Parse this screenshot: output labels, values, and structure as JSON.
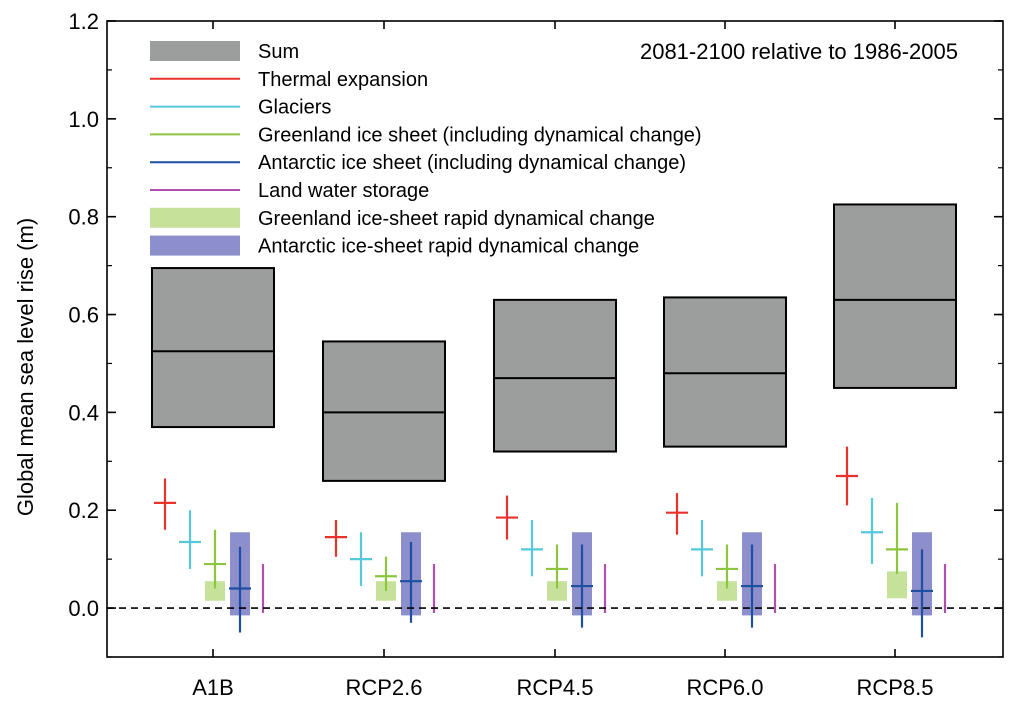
{
  "chart_data": {
    "type": "box-and-whisker",
    "period_label": "2081-2100 relative to 1986-2005",
    "ylabel": "Global mean sea level rise (m)",
    "xlabel": "",
    "ylim": [
      -0.1,
      1.2
    ],
    "yticks": [
      0.0,
      0.2,
      0.4,
      0.6,
      0.8,
      1.0,
      1.2
    ],
    "ytick_labels": [
      "0.0",
      "0.2",
      "0.4",
      "0.6",
      "0.8",
      "1.0",
      "1.2"
    ],
    "zero_line": "dashed",
    "grid": false,
    "legend_position": "top-left",
    "categories": [
      "A1B",
      "RCP2.6",
      "RCP4.5",
      "RCP6.0",
      "RCP8.5"
    ],
    "legend": [
      {
        "key": "sum",
        "label": "Sum",
        "style": "box",
        "color": "#9c9e9e"
      },
      {
        "key": "thermal",
        "label": "Thermal expansion",
        "style": "line",
        "color": "#e8322a"
      },
      {
        "key": "glaciers",
        "label": "Glaciers",
        "style": "line",
        "color": "#55c8dc"
      },
      {
        "key": "greenland",
        "label": "Greenland ice sheet (including dynamical change)",
        "style": "line",
        "color": "#8cc63f"
      },
      {
        "key": "antarctic",
        "label": "Antarctic ice sheet (including dynamical change)",
        "style": "line",
        "color": "#1f4fa0"
      },
      {
        "key": "landwater",
        "label": "Land water storage",
        "style": "line",
        "color": "#b04fb0"
      },
      {
        "key": "greenland_rapid",
        "label": "Greenland ice-sheet rapid dynamical change",
        "style": "box",
        "color": "#c6e29a"
      },
      {
        "key": "antarctic_rapid",
        "label": "Antarctic ice-sheet rapid dynamical change",
        "style": "box",
        "color": "#8c8fcc"
      }
    ],
    "sum": [
      {
        "category": "A1B",
        "low": 0.37,
        "median": 0.525,
        "high": 0.695
      },
      {
        "category": "RCP2.6",
        "low": 0.26,
        "median": 0.4,
        "high": 0.545
      },
      {
        "category": "RCP4.5",
        "low": 0.32,
        "median": 0.47,
        "high": 0.63
      },
      {
        "category": "RCP6.0",
        "low": 0.33,
        "median": 0.48,
        "high": 0.635
      },
      {
        "category": "RCP8.5",
        "low": 0.45,
        "median": 0.63,
        "high": 0.825
      }
    ],
    "components": {
      "thermal": [
        {
          "category": "A1B",
          "low": 0.16,
          "median": 0.215,
          "high": 0.265
        },
        {
          "category": "RCP2.6",
          "low": 0.105,
          "median": 0.145,
          "high": 0.18
        },
        {
          "category": "RCP4.5",
          "low": 0.14,
          "median": 0.185,
          "high": 0.23
        },
        {
          "category": "RCP6.0",
          "low": 0.15,
          "median": 0.195,
          "high": 0.235
        },
        {
          "category": "RCP8.5",
          "low": 0.21,
          "median": 0.27,
          "high": 0.33
        }
      ],
      "glaciers": [
        {
          "category": "A1B",
          "low": 0.08,
          "median": 0.135,
          "high": 0.2
        },
        {
          "category": "RCP2.6",
          "low": 0.045,
          "median": 0.1,
          "high": 0.155
        },
        {
          "category": "RCP4.5",
          "low": 0.065,
          "median": 0.12,
          "high": 0.18
        },
        {
          "category": "RCP6.0",
          "low": 0.065,
          "median": 0.12,
          "high": 0.18
        },
        {
          "category": "RCP8.5",
          "low": 0.09,
          "median": 0.155,
          "high": 0.225
        }
      ],
      "greenland": [
        {
          "category": "A1B",
          "low": 0.04,
          "median": 0.09,
          "high": 0.16
        },
        {
          "category": "RCP2.6",
          "low": 0.035,
          "median": 0.065,
          "high": 0.105
        },
        {
          "category": "RCP4.5",
          "low": 0.04,
          "median": 0.08,
          "high": 0.13
        },
        {
          "category": "RCP6.0",
          "low": 0.04,
          "median": 0.08,
          "high": 0.13
        },
        {
          "category": "RCP8.5",
          "low": 0.07,
          "median": 0.12,
          "high": 0.215
        }
      ],
      "antarctic": [
        {
          "category": "A1B",
          "low": -0.05,
          "median": 0.04,
          "high": 0.125
        },
        {
          "category": "RCP2.6",
          "low": -0.03,
          "median": 0.055,
          "high": 0.135
        },
        {
          "category": "RCP4.5",
          "low": -0.04,
          "median": 0.045,
          "high": 0.13
        },
        {
          "category": "RCP6.0",
          "low": -0.04,
          "median": 0.045,
          "high": 0.13
        },
        {
          "category": "RCP8.5",
          "low": -0.06,
          "median": 0.035,
          "high": 0.12
        }
      ],
      "landwater": [
        {
          "category": "A1B",
          "low": -0.01,
          "median": 0.04,
          "high": 0.09
        },
        {
          "category": "RCP2.6",
          "low": -0.01,
          "median": 0.04,
          "high": 0.09
        },
        {
          "category": "RCP4.5",
          "low": -0.01,
          "median": 0.04,
          "high": 0.09
        },
        {
          "category": "RCP6.0",
          "low": -0.01,
          "median": 0.04,
          "high": 0.09
        },
        {
          "category": "RCP8.5",
          "low": -0.01,
          "median": 0.04,
          "high": 0.09
        }
      ],
      "greenland_rapid": [
        {
          "category": "A1B",
          "low": 0.015,
          "high": 0.055
        },
        {
          "category": "RCP2.6",
          "low": 0.015,
          "high": 0.055
        },
        {
          "category": "RCP4.5",
          "low": 0.015,
          "high": 0.055
        },
        {
          "category": "RCP6.0",
          "low": 0.015,
          "high": 0.055
        },
        {
          "category": "RCP8.5",
          "low": 0.02,
          "high": 0.075
        }
      ],
      "antarctic_rapid": [
        {
          "category": "A1B",
          "low": -0.015,
          "high": 0.155
        },
        {
          "category": "RCP2.6",
          "low": -0.015,
          "high": 0.155
        },
        {
          "category": "RCP4.5",
          "low": -0.015,
          "high": 0.155
        },
        {
          "category": "RCP6.0",
          "low": -0.015,
          "high": 0.155
        },
        {
          "category": "RCP8.5",
          "low": -0.015,
          "high": 0.155
        }
      ]
    }
  }
}
